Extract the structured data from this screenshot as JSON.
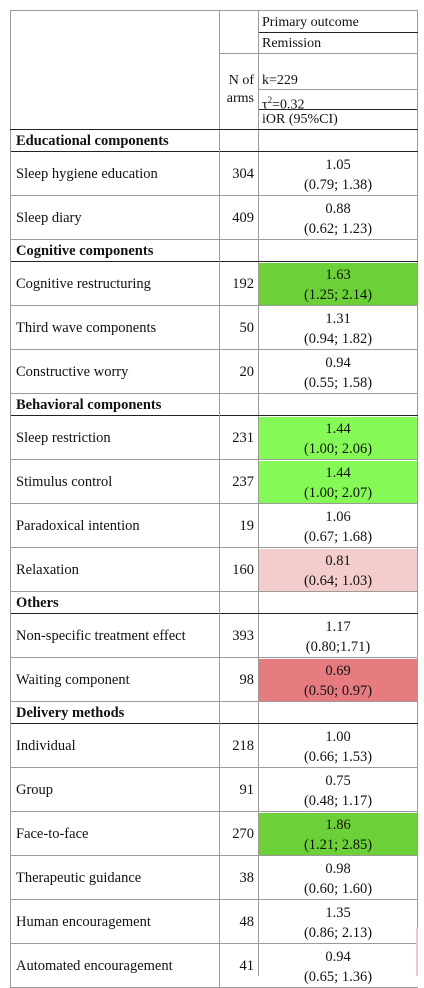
{
  "header": {
    "col_title": "Primary outcome",
    "col_subtitle": "Remission",
    "n_label_line1": "N of",
    "n_label_line2": "arms",
    "stat_k": "k=229",
    "stat_tau_symbol": "τ",
    "stat_tau_exp": "2",
    "stat_tau_value": "=0.32",
    "stat_ior": "iOR (95%CI)"
  },
  "rows": [
    {
      "type": "section",
      "label": "Educational components"
    },
    {
      "type": "item",
      "label": "Sleep hygiene education",
      "n": "304",
      "estimate": "1.05",
      "ci": "(0.79; 1.38)",
      "fill": ""
    },
    {
      "type": "item",
      "label": "Sleep diary",
      "n": "409",
      "estimate": "0.88",
      "ci": "(0.62; 1.23)",
      "fill": ""
    },
    {
      "type": "section",
      "label": "Cognitive components"
    },
    {
      "type": "item",
      "label": "Cognitive restructuring",
      "n": "192",
      "estimate": "1.63",
      "ci": "(1.25; 2.14)",
      "fill": "#6cd038"
    },
    {
      "type": "item",
      "label": "Third wave components",
      "n": "50",
      "estimate": "1.31",
      "ci": "(0.94; 1.82)",
      "fill": ""
    },
    {
      "type": "item",
      "label": "Constructive worry",
      "n": "20",
      "estimate": "0.94",
      "ci": "(0.55; 1.58)",
      "fill": ""
    },
    {
      "type": "section",
      "label": "Behavioral components"
    },
    {
      "type": "item",
      "label": "Sleep restriction",
      "n": "231",
      "estimate": "1.44",
      "ci": "(1.00; 2.06)",
      "fill": "#85fa56"
    },
    {
      "type": "item",
      "label": "Stimulus control",
      "n": "237",
      "estimate": "1.44",
      "ci": "(1.00; 2.07)",
      "fill": "#85fa56"
    },
    {
      "type": "item",
      "label": "Paradoxical intention",
      "n": "19",
      "estimate": "1.06",
      "ci": "(0.67; 1.68)",
      "fill": ""
    },
    {
      "type": "item",
      "label": "Relaxation",
      "n": "160",
      "estimate": "0.81",
      "ci": "(0.64; 1.03)",
      "fill": "#f4cccc"
    },
    {
      "type": "section",
      "label": "Others"
    },
    {
      "type": "item",
      "label": "Non-specific treatment effect",
      "n": "393",
      "estimate": "1.17",
      "ci": "(0.80;1.71)",
      "fill": ""
    },
    {
      "type": "item",
      "label": "Waiting component",
      "n": "98",
      "estimate": "0.69",
      "ci": "(0.50; 0.97)",
      "fill": "#e67c80"
    },
    {
      "type": "section",
      "label": "Delivery methods"
    },
    {
      "type": "item",
      "label": "Individual",
      "n": "218",
      "estimate": "1.00",
      "ci": "(0.66; 1.53)",
      "fill": ""
    },
    {
      "type": "item",
      "label": "Group",
      "n": "91",
      "estimate": "0.75",
      "ci": "(0.48; 1.17)",
      "fill": ""
    },
    {
      "type": "item",
      "label": "Face-to-face",
      "n": "270",
      "estimate": "1.86",
      "ci": "(1.21; 2.85)",
      "fill": "#6cd038"
    },
    {
      "type": "item",
      "label": "Therapeutic guidance",
      "n": "38",
      "estimate": "0.98",
      "ci": "(0.60; 1.60)",
      "fill": ""
    },
    {
      "type": "item",
      "label": "Human encouragement",
      "n": "48",
      "estimate": "1.35",
      "ci": "(0.86; 2.13)",
      "fill": ""
    },
    {
      "type": "item",
      "label": "Automated encouragement",
      "n": "41",
      "estimate": "0.94",
      "ci": "(0.65; 1.36)",
      "fill": ""
    }
  ]
}
